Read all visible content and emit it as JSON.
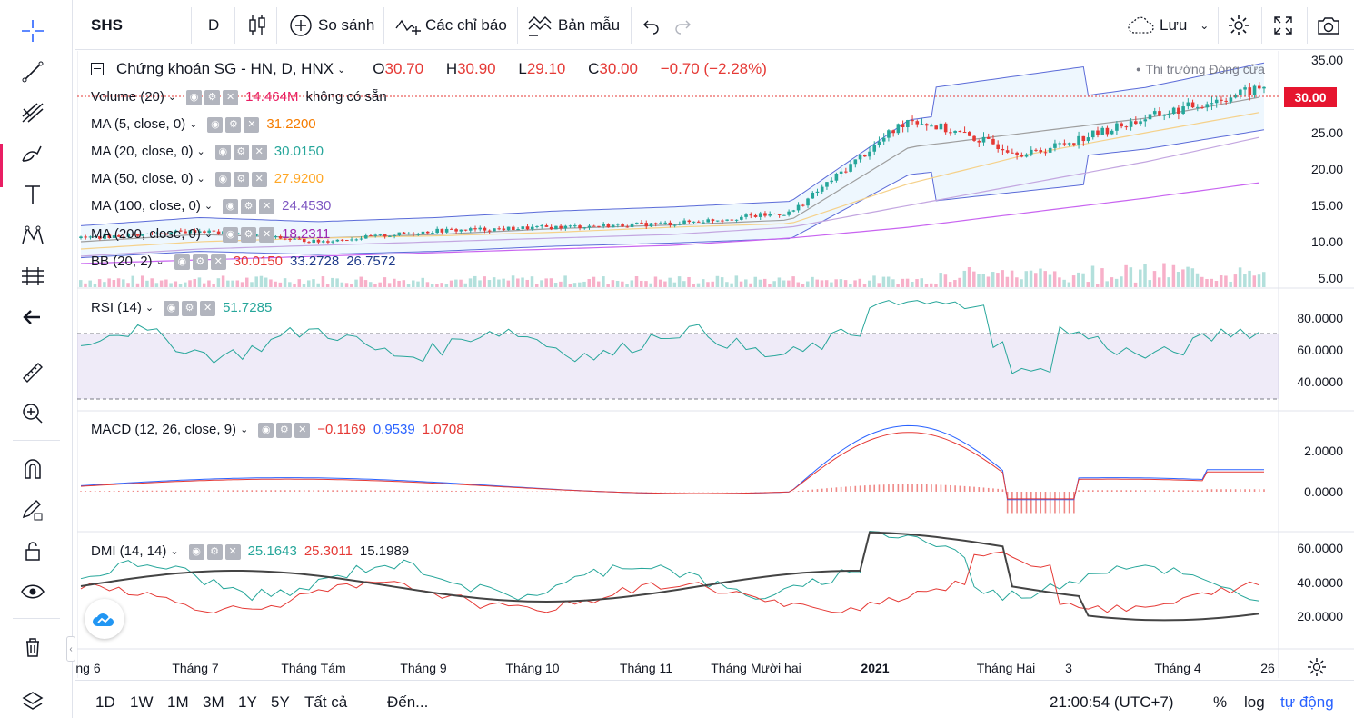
{
  "toolbar": {
    "symbol": "SHS",
    "interval": "D",
    "compare_label": "So sánh",
    "indicators_label": "Các chỉ báo",
    "templates_label": "Bản mẫu",
    "save_label": "Lưu"
  },
  "main_legend": {
    "title": "Chứng khoán SG - HN, D, HNX",
    "open_label": "O",
    "open": "30.70",
    "high_label": "H",
    "high": "30.90",
    "low_label": "L",
    "low": "29.10",
    "close_label": "C",
    "close": "30.00",
    "change": "−0.70 (−2.28%)",
    "market_status": "Thị trường Đóng cửa"
  },
  "indicators": [
    {
      "name": "Volume (20)",
      "values": [
        "14.464M",
        "không có sẵn"
      ],
      "colors": [
        "#e91e63",
        "#131722"
      ]
    },
    {
      "name": "MA (5, close, 0)",
      "values": [
        "31.2200"
      ],
      "colors": [
        "#f57c00"
      ]
    },
    {
      "name": "MA (20, close, 0)",
      "values": [
        "30.0150"
      ],
      "colors": [
        "#26a69a"
      ]
    },
    {
      "name": "MA (50, close, 0)",
      "values": [
        "27.9200"
      ],
      "colors": [
        "#ffa726"
      ]
    },
    {
      "name": "MA (100, close, 0)",
      "values": [
        "24.4530"
      ],
      "colors": [
        "#7e57c2"
      ]
    },
    {
      "name": "MA (200, close, 0)",
      "values": [
        "18.2311"
      ],
      "colors": [
        "#9c27b0"
      ]
    },
    {
      "name": "BB (20, 2)",
      "values": [
        "30.0150",
        "33.2728",
        "26.7572"
      ],
      "colors": [
        "#e53935",
        "#1e3a8a",
        "#1e3a8a"
      ]
    }
  ],
  "rsi": {
    "name": "RSI (14)",
    "value": "51.7285",
    "color": "#26a69a"
  },
  "macd": {
    "name": "MACD (12, 26, close, 9)",
    "values": [
      "−0.1169",
      "0.9539",
      "1.0708"
    ],
    "colors": [
      "#e53935",
      "#2962ff",
      "#e53935"
    ]
  },
  "dmi": {
    "name": "DMI (14, 14)",
    "values": [
      "25.1643",
      "25.3011",
      "15.1989"
    ],
    "colors": [
      "#26a69a",
      "#e53935",
      "#131722"
    ]
  },
  "price_axis": [
    "35.00",
    "25.00",
    "20.00",
    "15.00",
    "10.00",
    "5.00"
  ],
  "last_price": "30.00",
  "rsi_axis": [
    "80.0000",
    "60.0000",
    "40.0000"
  ],
  "macd_axis": [
    "2.0000",
    "0.0000"
  ],
  "dmi_axis": [
    "60.0000",
    "40.0000",
    "20.0000"
  ],
  "time_axis": [
    "ng 6",
    "Tháng 7",
    "Tháng Tám",
    "Tháng 9",
    "Tháng 10",
    "Tháng 11",
    "Tháng Mười hai",
    "2021",
    "Tháng Hai",
    "3",
    "Tháng 4",
    "26"
  ],
  "bottom": {
    "ranges": [
      "1D",
      "1W",
      "1M",
      "3M",
      "1Y",
      "5Y",
      "Tất cả"
    ],
    "goto": "Đến...",
    "clock": "21:00:54 (UTC+7)",
    "percent": "%",
    "log": "log",
    "auto": "tự động"
  },
  "colors": {
    "up": "#26a69a",
    "down": "#e53935",
    "accent": "#2962ff",
    "last_price_bg": "#e6152f"
  },
  "chart_data": {
    "type": "line",
    "title": "Chứng khoán SG - HN, D, HNX",
    "x": [
      "Tháng 6",
      "Tháng 7",
      "Tháng Tám",
      "Tháng 9",
      "Tháng 10",
      "Tháng 11",
      "Tháng Mười hai",
      "2021",
      "Tháng Hai",
      "3",
      "Tháng 4"
    ],
    "series": [
      {
        "name": "MA (5, close, 0)",
        "values": [
          10.5,
          11.5,
          10.0,
          11.5,
          12.0,
          12.5,
          14.0,
          27.0,
          22.0,
          27.0,
          31.2
        ]
      },
      {
        "name": "MA (20, close, 0)",
        "values": [
          10.0,
          11.0,
          10.5,
          11.0,
          11.8,
          12.3,
          13.0,
          23.0,
          25.0,
          27.0,
          30.0
        ]
      },
      {
        "name": "MA (50, close, 0)",
        "values": [
          9.0,
          10.0,
          10.5,
          10.8,
          11.3,
          12.0,
          12.5,
          18.0,
          22.0,
          25.0,
          27.9
        ]
      },
      {
        "name": "MA (100, close, 0)",
        "values": [
          8.0,
          9.0,
          9.5,
          10.0,
          10.5,
          11.0,
          12.0,
          15.0,
          18.0,
          21.0,
          24.5
        ]
      },
      {
        "name": "MA (200, close, 0)",
        "values": [
          7.0,
          7.5,
          8.0,
          8.5,
          9.0,
          9.5,
          10.5,
          12.0,
          14.0,
          16.0,
          18.2
        ]
      }
    ],
    "ylim": [
      5,
      35
    ]
  }
}
